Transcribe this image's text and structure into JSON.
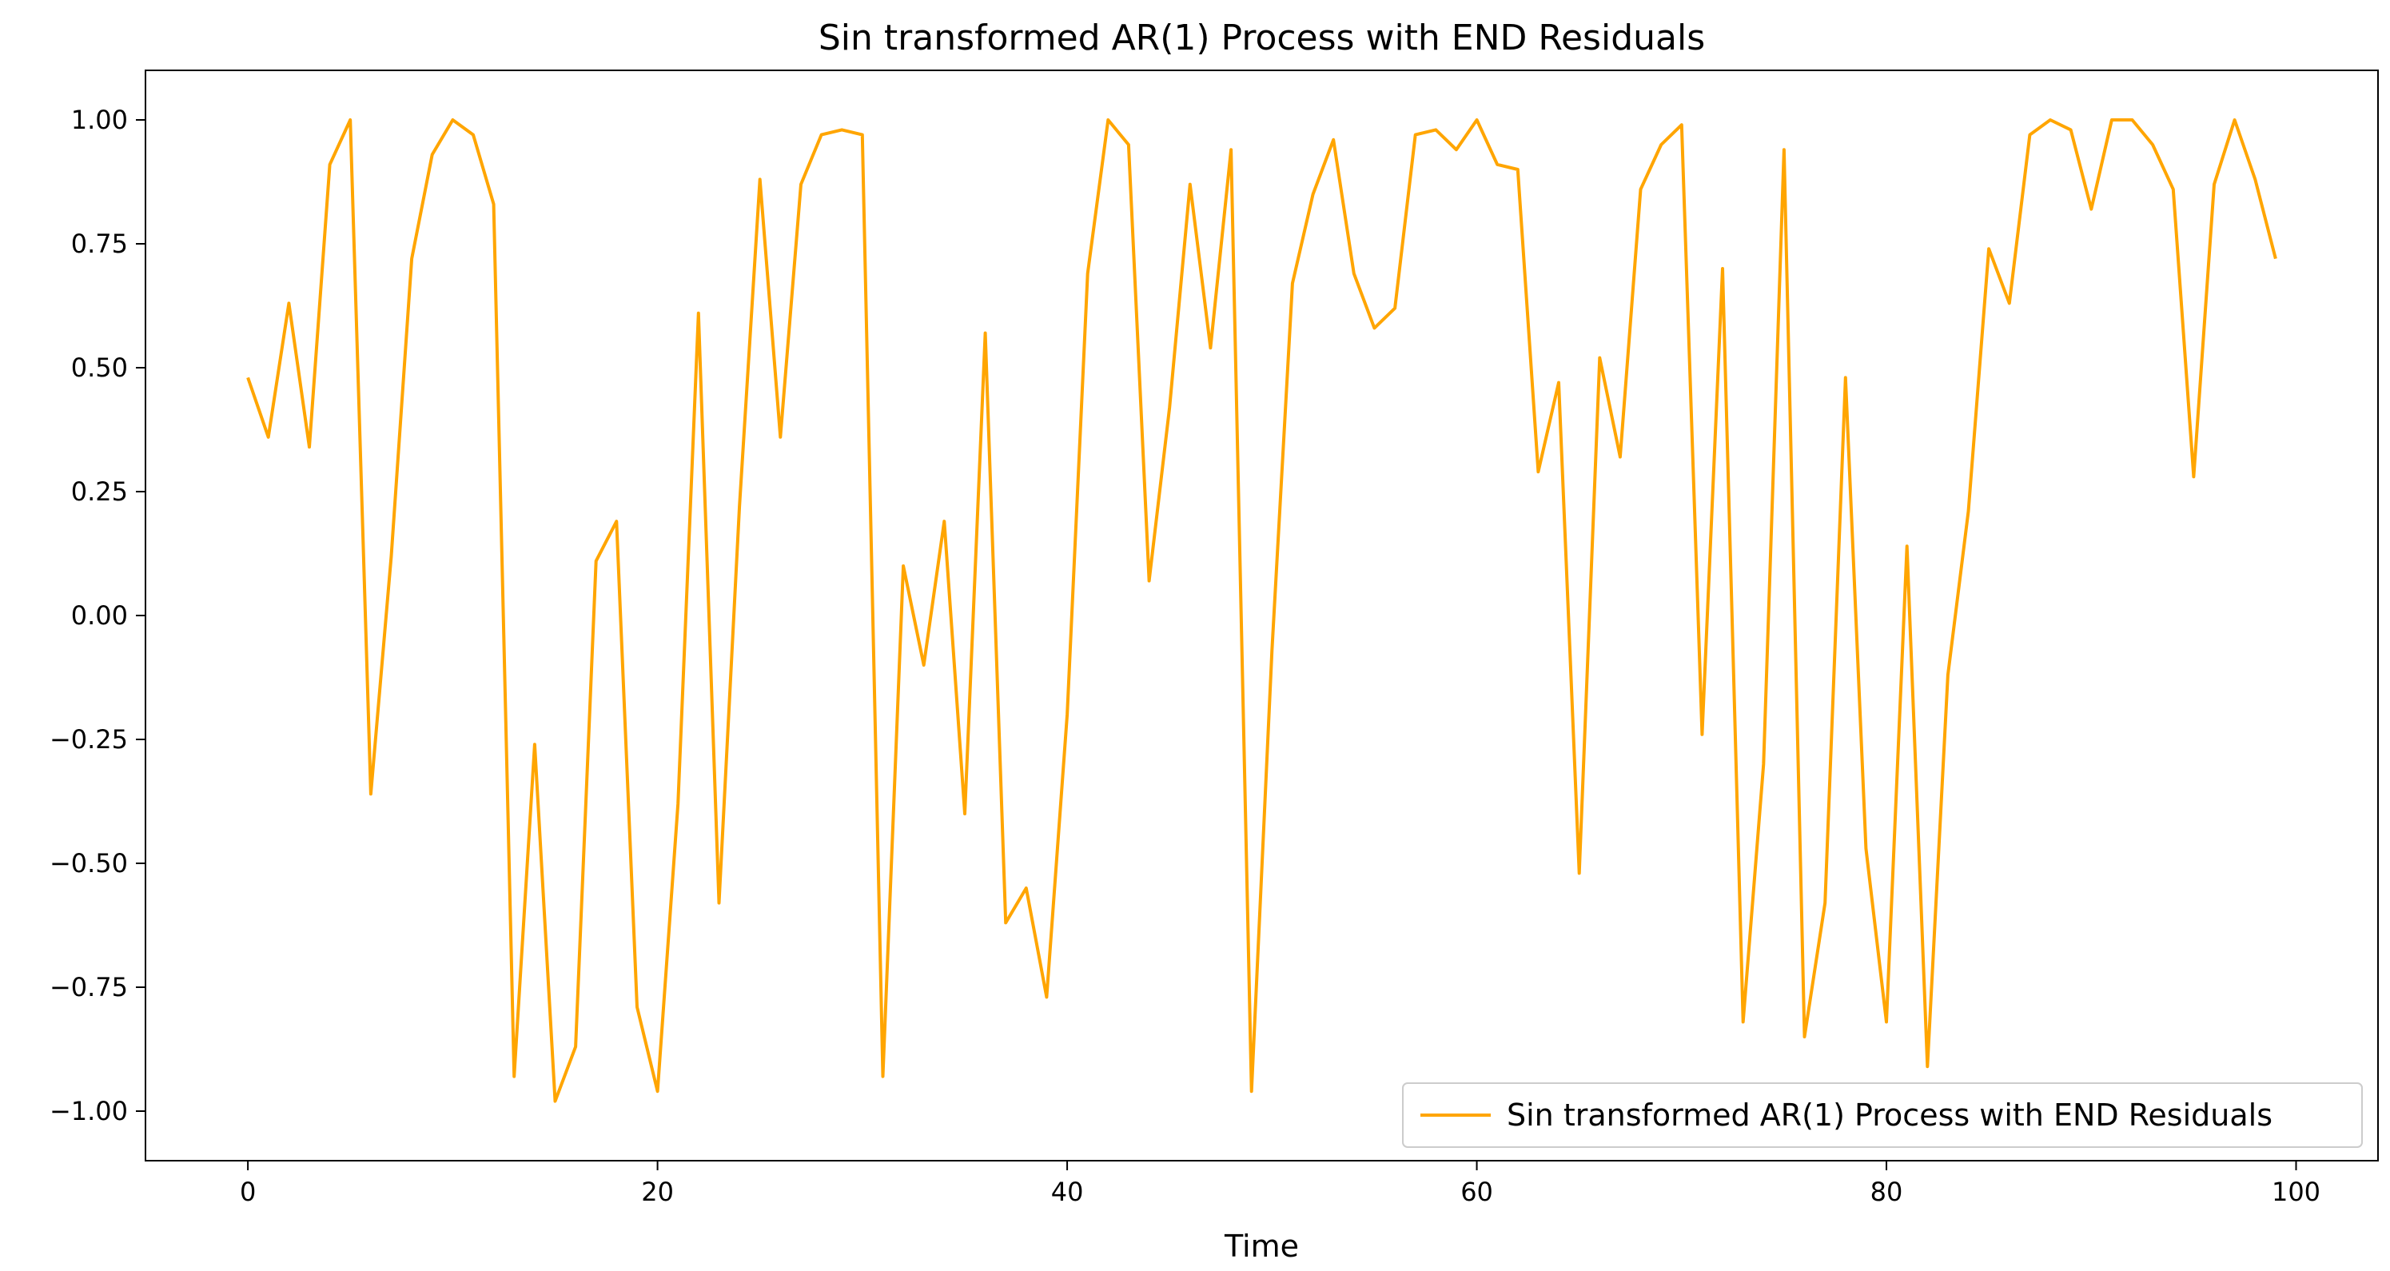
{
  "chart_data": {
    "type": "line",
    "title": "Sin transformed AR(1) Process with END Residuals",
    "xlabel": "Time",
    "ylabel": "",
    "xlim": [
      -5,
      104
    ],
    "ylim": [
      -1.1,
      1.1
    ],
    "x_ticks": [
      0,
      20,
      40,
      60,
      80,
      100
    ],
    "x_tick_labels": [
      "0",
      "20",
      "40",
      "60",
      "80",
      "100"
    ],
    "y_ticks": [
      -1.0,
      -0.75,
      -0.5,
      -0.25,
      0.0,
      0.25,
      0.5,
      0.75,
      1.0
    ],
    "y_tick_labels": [
      "−1.00",
      "−0.75",
      "−0.50",
      "−0.25",
      "0.00",
      "0.25",
      "0.50",
      "0.75",
      "1.00"
    ],
    "grid": false,
    "legend_position": "lower-right",
    "series": [
      {
        "name": "Sin transformed AR(1) Process with END Residuals",
        "color": "#FFA500",
        "x": [
          0,
          1,
          2,
          3,
          4,
          5,
          6,
          7,
          8,
          9,
          10,
          11,
          12,
          13,
          14,
          15,
          16,
          17,
          18,
          19,
          20,
          21,
          22,
          23,
          24,
          25,
          26,
          27,
          28,
          29,
          30,
          31,
          32,
          33,
          34,
          35,
          36,
          37,
          38,
          39,
          40,
          41,
          42,
          43,
          44,
          45,
          46,
          47,
          48,
          49,
          50,
          51,
          52,
          53,
          54,
          55,
          56,
          57,
          58,
          59,
          60,
          61,
          62,
          63,
          64,
          65,
          66,
          67,
          68,
          69,
          70,
          71,
          72,
          73,
          74,
          75,
          76,
          77,
          78,
          79,
          80,
          81,
          82,
          83,
          84,
          85,
          86,
          87,
          88,
          89,
          90,
          91,
          92,
          93,
          94,
          95,
          96,
          97,
          98,
          99
        ],
        "values": [
          0.48,
          0.36,
          0.63,
          0.34,
          0.91,
          1.0,
          -0.36,
          0.12,
          0.72,
          0.93,
          1.0,
          0.97,
          0.83,
          -0.93,
          -0.26,
          -0.98,
          -0.87,
          0.11,
          0.19,
          -0.79,
          -0.96,
          -0.38,
          0.61,
          -0.58,
          0.22,
          0.88,
          0.36,
          0.87,
          0.97,
          0.98,
          0.97,
          -0.93,
          0.1,
          -0.1,
          0.19,
          -0.4,
          0.57,
          -0.62,
          -0.55,
          -0.77,
          -0.2,
          0.69,
          1.0,
          0.95,
          0.07,
          0.42,
          0.87,
          0.54,
          0.94,
          -0.96,
          -0.07,
          0.67,
          0.85,
          0.96,
          0.69,
          0.58,
          0.62,
          0.97,
          0.98,
          0.94,
          1.0,
          0.91,
          0.9,
          0.29,
          0.47,
          -0.52,
          0.52,
          0.32,
          0.86,
          0.95,
          0.99,
          -0.24,
          0.7,
          -0.82,
          -0.3,
          0.94,
          -0.85,
          -0.58,
          0.48,
          -0.47,
          -0.82,
          0.14,
          -0.91,
          -0.12,
          0.21,
          0.74,
          0.63,
          0.97,
          1.0,
          0.98,
          0.82,
          1.0,
          1.0,
          0.95,
          0.86,
          0.28,
          0.87,
          1.0,
          0.88,
          0.72
        ]
      }
    ]
  }
}
